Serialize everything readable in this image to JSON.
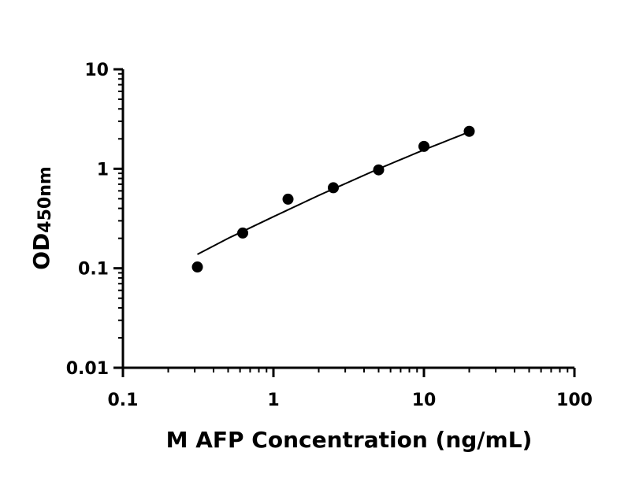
{
  "chart_data": {
    "type": "scatter",
    "xlabel": "M AFP Concentration (ng/mL)",
    "ylabel_main": "OD",
    "ylabel_sub": "450nm",
    "x_scale": "log",
    "y_scale": "log",
    "xlim": [
      0.1,
      100
    ],
    "ylim": [
      0.01,
      10
    ],
    "x_ticks": [
      0.1,
      1,
      10,
      100
    ],
    "x_tick_labels": [
      "0.1",
      "1",
      "10",
      "100"
    ],
    "y_ticks": [
      0.01,
      0.1,
      1,
      10
    ],
    "y_tick_labels": [
      "0.01",
      "0.1",
      "1",
      "10"
    ],
    "grid": false,
    "series": [
      {
        "x": [
          0.3125,
          0.625,
          1.25,
          2.5,
          5,
          10,
          20
        ],
        "y": [
          0.103,
          0.226,
          0.495,
          0.645,
          0.975,
          1.68,
          2.38
        ]
      }
    ],
    "fit_curve": {
      "x": [
        0.3125,
        0.5,
        1,
        2,
        5,
        10,
        20
      ],
      "y": [
        0.138,
        0.2,
        0.33,
        0.54,
        1.0,
        1.55,
        2.35
      ]
    },
    "colors": {
      "marker": "#000000",
      "line": "#000000",
      "axis": "#000000"
    }
  }
}
